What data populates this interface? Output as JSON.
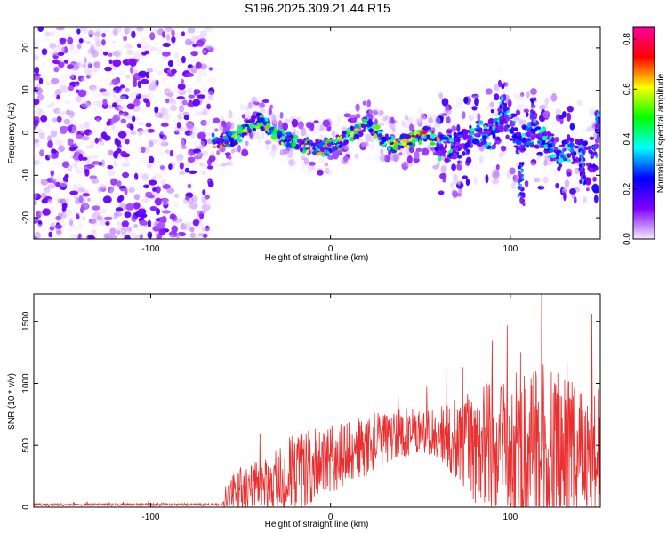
{
  "title": "S196.2025.309.21.44.R15",
  "chart_data": [
    {
      "type": "heatmap",
      "name": "spectrogram",
      "xlabel": "Height of straight line (km)",
      "ylabel": "Frequency (Hz)",
      "xlim": [
        -165,
        150
      ],
      "ylim": [
        -25,
        25
      ],
      "xticks": [
        -100,
        0,
        100
      ],
      "yticks": [
        -20,
        -10,
        0,
        10,
        20
      ],
      "colorbar": {
        "label": "Normalized spectral amplitude",
        "range": [
          0.0,
          0.85
        ],
        "ticks": [
          0.0,
          0.2,
          0.4,
          0.6,
          0.8
        ],
        "colors": [
          "#f4ecff",
          "#8000ff",
          "#0000ff",
          "#00ffff",
          "#00ff00",
          "#ffff00",
          "#ff0000",
          "#ff00a0"
        ]
      },
      "features": [
        {
          "region": "noise",
          "x_range": [
            -165,
            -65
          ],
          "freq_range": [
            -25,
            25
          ],
          "amplitude": 0.05
        },
        {
          "region": "signal_band",
          "x_range": [
            -65,
            60
          ],
          "center_freq_approx": -3,
          "peak_amplitude": 0.8
        },
        {
          "region": "scattered",
          "x_range": [
            60,
            150
          ],
          "freq_range": [
            -20,
            15
          ],
          "amplitude": 0.2
        }
      ],
      "band_center": [
        [
          -68,
          -2
        ],
        [
          -60,
          -2
        ],
        [
          -52,
          -1
        ],
        [
          -46,
          1
        ],
        [
          -40,
          3
        ],
        [
          -34,
          1
        ],
        [
          -28,
          -1
        ],
        [
          -22,
          -2
        ],
        [
          -16,
          -3
        ],
        [
          -10,
          -3
        ],
        [
          -4,
          -4
        ],
        [
          2,
          -3
        ],
        [
          8,
          -1
        ],
        [
          14,
          0
        ],
        [
          20,
          2
        ],
        [
          26,
          0
        ],
        [
          30,
          -2
        ],
        [
          36,
          -3
        ],
        [
          42,
          -2
        ],
        [
          48,
          -1
        ],
        [
          54,
          0
        ],
        [
          60,
          -3
        ],
        [
          66,
          -4
        ],
        [
          72,
          -3
        ],
        [
          78,
          -1
        ],
        [
          84,
          0
        ],
        [
          90,
          -2
        ],
        [
          96,
          5
        ],
        [
          104,
          -3
        ],
        [
          112,
          0
        ],
        [
          120,
          -2
        ],
        [
          128,
          -5
        ],
        [
          136,
          -4
        ],
        [
          145,
          -6
        ]
      ]
    },
    {
      "type": "line",
      "name": "snr",
      "xlabel": "Height of straight line (km)",
      "ylabel": "SNR (10 * v/v)",
      "xlim": [
        -165,
        150
      ],
      "ylim": [
        0,
        1720
      ],
      "xticks": [
        -100,
        0,
        100
      ],
      "yticks": [
        0,
        500,
        1000,
        1500
      ],
      "color": "#e83030",
      "envelope": [
        {
          "x": -165,
          "base": 20,
          "amp": 10
        },
        {
          "x": -60,
          "base": 22,
          "amp": 10
        },
        {
          "x": -55,
          "base": 100,
          "amp": 150
        },
        {
          "x": -50,
          "base": 120,
          "amp": 200
        },
        {
          "x": -40,
          "base": 180,
          "amp": 200
        },
        {
          "x": -30,
          "base": 230,
          "amp": 280
        },
        {
          "x": -20,
          "base": 280,
          "amp": 330
        },
        {
          "x": -10,
          "base": 330,
          "amp": 300
        },
        {
          "x": 0,
          "base": 380,
          "amp": 280
        },
        {
          "x": 10,
          "base": 440,
          "amp": 260
        },
        {
          "x": 20,
          "base": 500,
          "amp": 250
        },
        {
          "x": 30,
          "base": 560,
          "amp": 220
        },
        {
          "x": 40,
          "base": 600,
          "amp": 200
        },
        {
          "x": 50,
          "base": 620,
          "amp": 180
        },
        {
          "x": 60,
          "base": 600,
          "amp": 200
        },
        {
          "x": 70,
          "base": 560,
          "amp": 350
        },
        {
          "x": 80,
          "base": 520,
          "amp": 480
        },
        {
          "x": 90,
          "base": 480,
          "amp": 560
        },
        {
          "x": 100,
          "base": 450,
          "amp": 620
        },
        {
          "x": 110,
          "base": 430,
          "amp": 700
        },
        {
          "x": 120,
          "base": 420,
          "amp": 760
        },
        {
          "x": 130,
          "base": 410,
          "amp": 650
        },
        {
          "x": 140,
          "base": 400,
          "amp": 600
        },
        {
          "x": 150,
          "base": 400,
          "amp": 560
        }
      ],
      "peak_max": 1720
    }
  ]
}
